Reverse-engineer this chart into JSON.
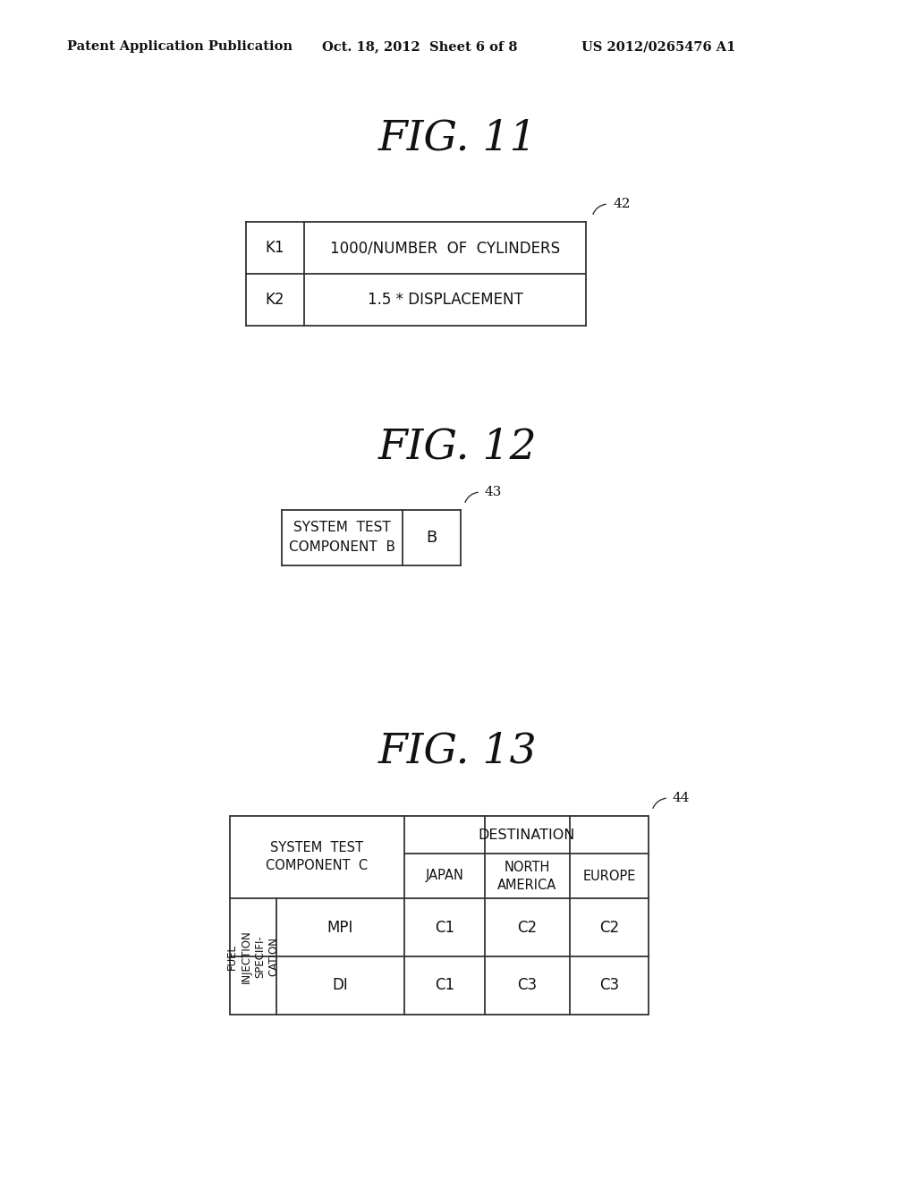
{
  "bg_color": "#ffffff",
  "text_color": "#111111",
  "line_color": "#333333",
  "header_text": "Patent Application Publication",
  "header_date": "Oct. 18, 2012  Sheet 6 of 8",
  "header_patent": "US 2012/0265476 A1",
  "fig11_title": "FIG. 11",
  "fig11_label": "42",
  "fig11_rows": [
    [
      "K1",
      "1000/NUMBER  OF  CYLINDERS"
    ],
    [
      "K2",
      "1.5 * DISPLACEMENT"
    ]
  ],
  "fig12_title": "FIG. 12",
  "fig12_label": "43",
  "fig12_left_line1": "SYSTEM  TEST",
  "fig12_left_line2": "COMPONENT  B",
  "fig12_right": "B",
  "fig13_title": "FIG. 13",
  "fig13_label": "44",
  "fig13_corner_line1": "SYSTEM  TEST",
  "fig13_corner_line2": "COMPONENT  C",
  "fig13_dest_header": "DESTINATION",
  "fig13_col_headers": [
    "JAPAN",
    "NORTH\nAMERICA",
    "EUROPE"
  ],
  "fig13_row_header_group_lines": [
    "FUEL",
    "INJECTION",
    "SPECIFI-",
    "CATION"
  ],
  "fig13_row_headers": [
    "MPI",
    "DI"
  ],
  "fig13_data": [
    [
      "C1",
      "C2",
      "C2"
    ],
    [
      "C1",
      "C3",
      "C3"
    ]
  ]
}
